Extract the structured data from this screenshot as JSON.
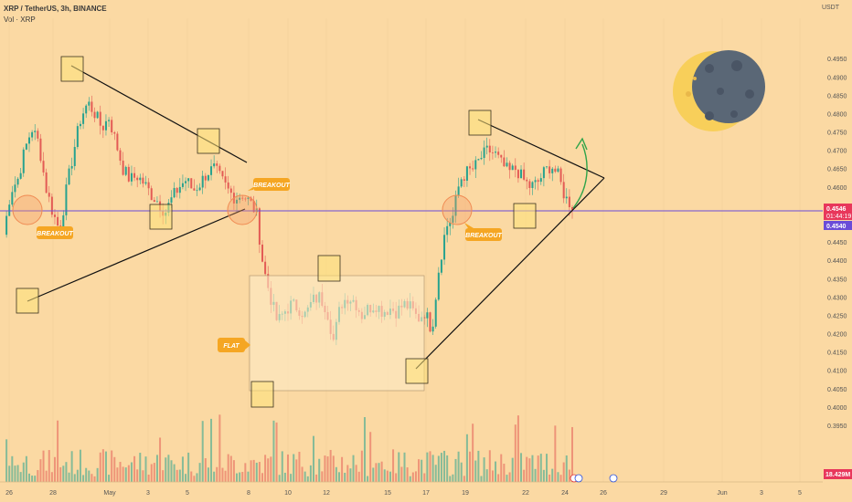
{
  "header": {
    "title": "XRP / TetherUS, 3h, BINANCE",
    "volume_label": "Vol · XRP"
  },
  "colors": {
    "background": "#fbd9a3",
    "up": "#27a28f",
    "down": "#e35b55",
    "trendline": "#111111",
    "level": "#6a4cd8",
    "badge": "#f5a623",
    "box_fill": "#fde27a",
    "circle": "#f39a63",
    "arrow": "#2fa44a",
    "current_price_tag": "#e8375b",
    "level_tag": "#6a4cd8",
    "volume_tag": "#e8375b"
  },
  "chart_data": {
    "type": "candlestick",
    "y_unit": "USDT",
    "ylim": [
      0.394,
      0.506
    ],
    "price_ticks": [
      "0.4950",
      "0.4900",
      "0.4850",
      "0.4800",
      "0.4750",
      "0.4700",
      "0.4650",
      "0.4600",
      "0.4550",
      "0.4500",
      "0.4450",
      "0.4400",
      "0.4350",
      "0.4300",
      "0.4250",
      "0.4200",
      "0.4150",
      "0.4100",
      "0.4050",
      "0.4000",
      "0.3950"
    ],
    "x_ticks": [
      "26",
      "28",
      "May",
      "3",
      "5",
      "8",
      "10",
      "12",
      "15",
      "17",
      "19",
      "22",
      "24",
      "26",
      "29",
      "Jun",
      "3",
      "5"
    ],
    "current_price": "0.4546",
    "countdown": "01:44:19",
    "level_price": "0.4540",
    "volume_last": "18.429M",
    "annotations": {
      "breakout_labels": [
        "BREAKOUT",
        "BREAKOUT",
        "BREAKOUT"
      ],
      "flat_label": "FLAT"
    },
    "price_path": [
      [
        0.447,
        0.459,
        0.462,
        0.47,
        0.476,
        0.472,
        0.46,
        0.453,
        0.448,
        0.46,
        0.47,
        0.479,
        0.483,
        0.48,
        0.476,
        0.479,
        0.472,
        0.465,
        0.462,
        0.463,
        0.461,
        0.458,
        0.456,
        0.453,
        0.457,
        0.46,
        0.462,
        0.459,
        0.461,
        0.464,
        0.465,
        0.462,
        0.459,
        0.457,
        0.458,
        0.456,
        0.453,
        0.438,
        0.43,
        0.423,
        0.426,
        0.428,
        0.427,
        0.425,
        0.429,
        0.43,
        0.427,
        0.418,
        0.428,
        0.43,
        0.429,
        0.425,
        0.427,
        0.428,
        0.426,
        0.427,
        0.426,
        0.428,
        0.427,
        0.424,
        0.426,
        0.421,
        0.438,
        0.449,
        0.452,
        0.462,
        0.464,
        0.465,
        0.468,
        0.47,
        0.469,
        0.466,
        0.464,
        0.465,
        0.462,
        0.46,
        0.461,
        0.464,
        0.466,
        0.463,
        0.457,
        0.455
      ]
    ]
  }
}
